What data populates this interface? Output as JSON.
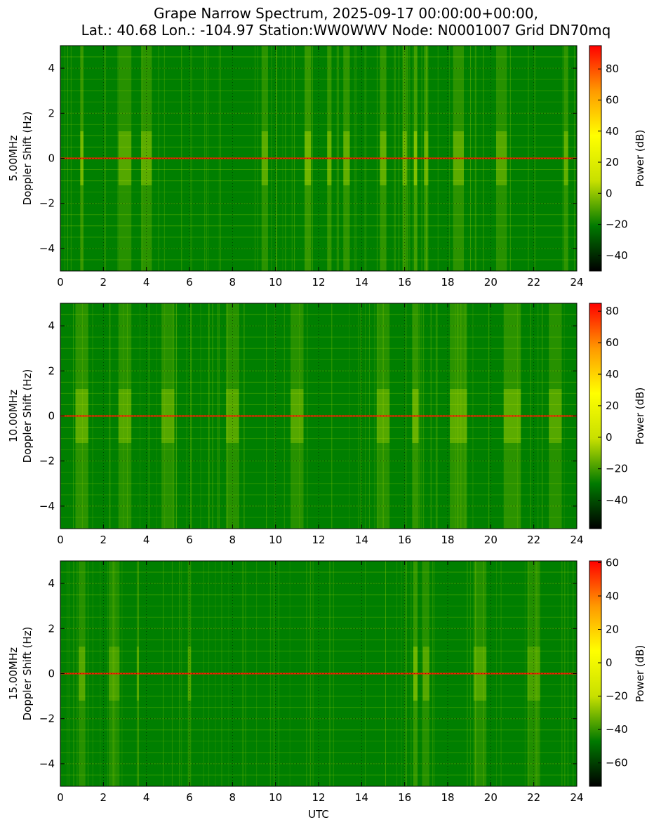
{
  "figure": {
    "title_line1": "Grape Narrow Spectrum, 2025-09-17 00:00:00+00:00,",
    "title_line2": "Lat.: 40.68 Lon.: -104.97 Station:WW0WWV Node: N0001007 Grid DN70mq",
    "xlabel": "UTC"
  },
  "colors": {
    "colormap": [
      "#000000",
      "#007a00",
      "#c8e000",
      "#ffff00",
      "#ff9900",
      "#ff0000"
    ],
    "background": "#007f00",
    "carrier": "#ff2000"
  },
  "chart_data": [
    {
      "type": "heatmap",
      "title": "",
      "ylabel_line1": "5.00MHz",
      "ylabel_line2": "Doppler Shift (Hz)",
      "xlim": [
        0,
        24
      ],
      "ylim": [
        -5,
        5
      ],
      "x_ticks": [
        0,
        2,
        4,
        6,
        8,
        10,
        12,
        14,
        16,
        18,
        20,
        22,
        24
      ],
      "y_ticks": [
        -4,
        -2,
        0,
        2,
        4
      ],
      "grid": true,
      "colorbar": {
        "label": "Power (dB)",
        "vmin": -50,
        "vmax": 95,
        "ticks": [
          -40,
          -20,
          0,
          20,
          40,
          60,
          80
        ]
      },
      "carrier_hz": 0,
      "features": [
        {
          "x": 1.0,
          "width": 0.15,
          "level": 0.8
        },
        {
          "x": 3.0,
          "width": 0.6,
          "level": 0.55
        },
        {
          "x": 4.0,
          "width": 0.5,
          "level": 0.6
        },
        {
          "x": 9.5,
          "width": 0.3,
          "level": 0.6
        },
        {
          "x": 11.5,
          "width": 0.3,
          "level": 0.75
        },
        {
          "x": 12.5,
          "width": 0.2,
          "level": 0.7
        },
        {
          "x": 13.3,
          "width": 0.3,
          "level": 0.65
        },
        {
          "x": 15.0,
          "width": 0.3,
          "level": 0.65
        },
        {
          "x": 16.0,
          "width": 0.2,
          "level": 0.7
        },
        {
          "x": 16.5,
          "width": 0.15,
          "level": 0.9
        },
        {
          "x": 17.0,
          "width": 0.2,
          "level": 0.7
        },
        {
          "x": 18.5,
          "width": 0.5,
          "level": 0.6
        },
        {
          "x": 20.5,
          "width": 0.5,
          "level": 0.55
        },
        {
          "x": 23.5,
          "width": 0.2,
          "level": 0.65
        }
      ]
    },
    {
      "type": "heatmap",
      "title": "",
      "ylabel_line1": "10.00MHz",
      "ylabel_line2": "Doppler Shift (Hz)",
      "xlim": [
        0,
        24
      ],
      "ylim": [
        -5,
        5
      ],
      "x_ticks": [
        0,
        2,
        4,
        6,
        8,
        10,
        12,
        14,
        16,
        18,
        20,
        22,
        24
      ],
      "y_ticks": [
        -4,
        -2,
        0,
        2,
        4
      ],
      "grid": true,
      "colorbar": {
        "label": "Power (dB)",
        "vmin": -58,
        "vmax": 85,
        "ticks": [
          -40,
          -20,
          0,
          20,
          40,
          60,
          80
        ]
      },
      "carrier_hz": 0,
      "features": [
        {
          "x": 1.0,
          "width": 0.6,
          "level": 0.6
        },
        {
          "x": 3.0,
          "width": 0.6,
          "level": 0.55
        },
        {
          "x": 5.0,
          "width": 0.6,
          "level": 0.55
        },
        {
          "x": 8.0,
          "width": 0.6,
          "level": 0.55
        },
        {
          "x": 11.0,
          "width": 0.6,
          "level": 0.55
        },
        {
          "x": 15.0,
          "width": 0.6,
          "level": 0.55
        },
        {
          "x": 16.5,
          "width": 0.3,
          "level": 0.7
        },
        {
          "x": 18.5,
          "width": 0.8,
          "level": 0.6
        },
        {
          "x": 21.0,
          "width": 0.8,
          "level": 0.6
        },
        {
          "x": 23.0,
          "width": 0.6,
          "level": 0.55
        }
      ]
    },
    {
      "type": "heatmap",
      "title": "",
      "ylabel_line1": "15.00MHz",
      "ylabel_line2": "Doppler Shift (Hz)",
      "xlim": [
        0,
        24
      ],
      "ylim": [
        -5,
        5
      ],
      "x_ticks": [
        0,
        2,
        4,
        6,
        8,
        10,
        12,
        14,
        16,
        18,
        20,
        22,
        24
      ],
      "y_ticks": [
        -4,
        -2,
        0,
        2,
        4
      ],
      "grid": true,
      "colorbar": {
        "label": "Power (dB)",
        "vmin": -74,
        "vmax": 61,
        "ticks": [
          -60,
          -40,
          -20,
          0,
          20,
          40,
          60
        ]
      },
      "carrier_hz": 0,
      "features": [
        {
          "x": 1.0,
          "width": 0.3,
          "level": 0.55
        },
        {
          "x": 2.5,
          "width": 0.5,
          "level": 0.45
        },
        {
          "x": 3.6,
          "width": 0.1,
          "level": 0.55
        },
        {
          "x": 6.0,
          "width": 0.15,
          "level": 0.5
        },
        {
          "x": 16.5,
          "width": 0.2,
          "level": 0.75
        },
        {
          "x": 17.0,
          "width": 0.3,
          "level": 0.55
        },
        {
          "x": 19.5,
          "width": 0.6,
          "level": 0.5
        },
        {
          "x": 22.0,
          "width": 0.6,
          "level": 0.45
        }
      ]
    }
  ]
}
